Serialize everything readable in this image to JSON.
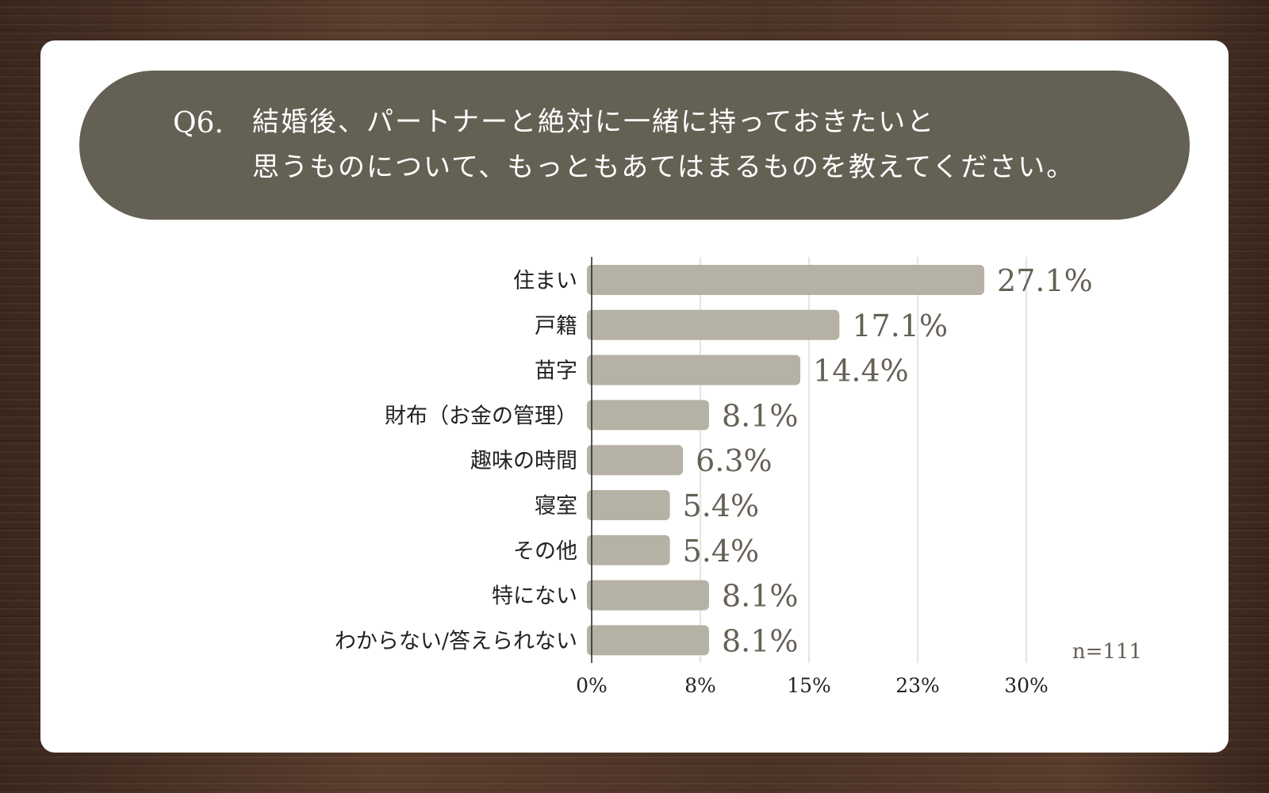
{
  "question": {
    "number": "Q6.",
    "line1": "結婚後、パートナーと絶対に一緒に持っておきたいと",
    "line2": "思うものについて、もっともあてはまるものを教えてください。"
  },
  "sample_size": "n=111",
  "colors": {
    "banner": "#656054",
    "bar": "#b5b1a4",
    "value_text": "#666055",
    "grid": "#c8c8c8"
  },
  "chart_data": {
    "type": "bar",
    "orientation": "horizontal",
    "categories": [
      "住まい",
      "戸籍",
      "苗字",
      "財布（お金の管理）",
      "趣味の時間",
      "寝室",
      "その他",
      "特にない",
      "わからない/答えられない"
    ],
    "values": [
      27.1,
      17.1,
      14.4,
      8.1,
      6.3,
      5.4,
      5.4,
      8.1,
      8.1
    ],
    "value_labels": [
      "27.1%",
      "17.1%",
      "14.4%",
      "8.1%",
      "6.3%",
      "5.4%",
      "5.4%",
      "8.1%",
      "8.1%"
    ],
    "xlim": [
      0,
      30
    ],
    "xticks": [
      0,
      7.5,
      15,
      22.5,
      30
    ],
    "xtick_labels": [
      "0%",
      "8%",
      "15%",
      "23%",
      "30%"
    ],
    "grid": true,
    "xlabel": "",
    "ylabel": ""
  }
}
